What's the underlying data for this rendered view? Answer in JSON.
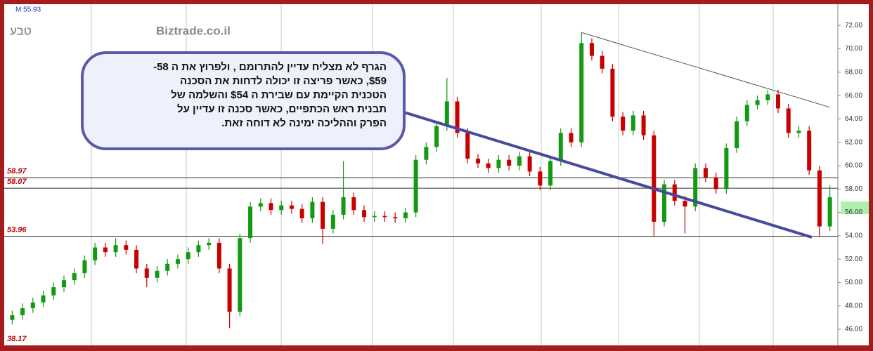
{
  "chart_data": {
    "type": "candlestick",
    "info": "M:55.93",
    "symbol": "טבע",
    "watermark": "Biztrade.co.il",
    "callout": [
      "הגרף לא מצליח עדיין להתרומם , ולפרוץ את ה 58-",
      "$59, כאשר פריצה זו יכולה לדחות את הסכנה",
      "הטכנית הקיימת עם שבירת ה $54 והשלמה של",
      "תבנית ראש הכתפיים, כאשר סכנה זו עדיין על",
      "הפרק וההליכה ימינה לא דוחה זאת."
    ],
    "levels": [
      58.97,
      58.07,
      53.96
    ],
    "low_label": "38.17",
    "up_color": "#129a12",
    "down_color": "#c80000",
    "ylim": [
      44.86,
      73.7
    ],
    "yticks": [
      {
        "value": 46,
        "label": "46.00"
      },
      {
        "value": 48,
        "label": "48.00"
      },
      {
        "value": 50,
        "label": "50.00"
      },
      {
        "value": 52,
        "label": "52.00"
      },
      {
        "value": 54,
        "label": "54.00"
      },
      {
        "value": 56,
        "label": "56.00"
      },
      {
        "value": 58,
        "label": "58.00"
      },
      {
        "value": 60,
        "label": "60.00"
      },
      {
        "value": 62,
        "label": "62.00"
      },
      {
        "value": 64,
        "label": "64.00"
      },
      {
        "value": 66,
        "label": "66.00"
      },
      {
        "value": 68,
        "label": "68.00"
      },
      {
        "value": 70,
        "label": "70.00"
      },
      {
        "value": 72,
        "label": "72.00"
      }
    ],
    "trend_line": {
      "x": [
        55,
        79
      ],
      "y": [
        71.4,
        65.0
      ]
    },
    "open": [
      46.8,
      47.2,
      47.8,
      48.3,
      48.9,
      49.6,
      50.2,
      50.8,
      51.9,
      53.0,
      52.6,
      53.2,
      52.8,
      51.2,
      50.4,
      51.0,
      51.6,
      52.0,
      52.6,
      53.2,
      53.4,
      51.2,
      47.5,
      53.8,
      56.5,
      56.8,
      56.2,
      56.6,
      56.3,
      55.5,
      56.9,
      54.6,
      55.8,
      57.3,
      56.2,
      55.6,
      55.7,
      55.6,
      55.5,
      56.0,
      60.5,
      61.6,
      63.4,
      65.5,
      62.8,
      60.6,
      60.2,
      59.8,
      60.5,
      60.0,
      60.8,
      59.5,
      58.3,
      60.4,
      62.8,
      62.0,
      70.5,
      69.4,
      68.3,
      64.2,
      63.0,
      64.3,
      62.6,
      55.2,
      58.4,
      57.0,
      56.5,
      59.8,
      59.0,
      58.0,
      61.5,
      63.8,
      65.2,
      65.6,
      66.1,
      64.9,
      62.8,
      63.0,
      59.6,
      54.8
    ],
    "high": [
      47.6,
      48.2,
      48.7,
      49.3,
      50.0,
      50.6,
      51.2,
      52.3,
      53.4,
      53.4,
      53.8,
      53.6,
      53.2,
      51.6,
      51.4,
      52.0,
      52.4,
      53.0,
      53.6,
      53.8,
      53.8,
      51.6,
      54.2,
      56.9,
      57.2,
      57.2,
      57.0,
      57.0,
      56.7,
      57.3,
      57.3,
      56.2,
      60.4,
      57.7,
      56.6,
      56.1,
      56.1,
      56.0,
      56.4,
      60.9,
      62.0,
      63.8,
      67.5,
      65.9,
      63.2,
      61.0,
      60.6,
      60.9,
      60.9,
      61.2,
      61.2,
      59.9,
      60.8,
      63.2,
      63.2,
      71.4,
      70.9,
      69.8,
      68.7,
      64.6,
      64.7,
      64.7,
      63.0,
      58.8,
      58.8,
      57.4,
      60.2,
      60.2,
      59.4,
      61.9,
      64.2,
      65.6,
      66.0,
      66.5,
      66.5,
      65.3,
      63.4,
      63.4,
      60.0,
      58.3
    ],
    "low": [
      46.4,
      46.8,
      47.4,
      47.9,
      48.5,
      49.2,
      49.8,
      50.4,
      51.5,
      52.2,
      52.2,
      52.4,
      50.8,
      49.6,
      50.0,
      50.6,
      51.2,
      51.6,
      52.2,
      52.8,
      50.8,
      46.1,
      47.1,
      53.4,
      56.1,
      55.8,
      55.8,
      55.9,
      55.1,
      55.1,
      53.3,
      54.2,
      55.4,
      55.8,
      55.2,
      55.2,
      55.2,
      55.1,
      55.1,
      55.6,
      60.1,
      61.2,
      63.0,
      62.4,
      60.2,
      59.8,
      59.4,
      59.4,
      59.6,
      59.6,
      59.1,
      57.9,
      57.9,
      60.0,
      61.6,
      61.6,
      69.0,
      67.9,
      63.8,
      62.6,
      62.6,
      62.2,
      53.9,
      54.8,
      56.6,
      54.2,
      56.1,
      58.6,
      57.6,
      57.6,
      61.1,
      63.4,
      64.8,
      65.2,
      64.5,
      62.4,
      62.4,
      59.2,
      53.9,
      54.4
    ],
    "close": [
      47.2,
      47.8,
      48.3,
      48.9,
      49.6,
      50.2,
      50.8,
      51.9,
      53.0,
      52.6,
      53.2,
      52.8,
      51.2,
      50.4,
      51.0,
      51.6,
      52.0,
      52.6,
      53.2,
      53.4,
      51.2,
      47.5,
      53.8,
      56.5,
      56.8,
      56.2,
      56.6,
      56.3,
      55.5,
      56.9,
      54.6,
      55.8,
      57.3,
      56.2,
      55.6,
      55.7,
      55.6,
      55.5,
      56.0,
      60.5,
      61.6,
      63.4,
      65.5,
      62.8,
      60.6,
      60.2,
      59.8,
      60.5,
      60.0,
      60.8,
      59.5,
      58.3,
      60.4,
      62.8,
      62.0,
      70.5,
      69.4,
      68.3,
      64.2,
      63.0,
      64.3,
      62.6,
      55.2,
      58.4,
      57.0,
      56.5,
      59.8,
      59.0,
      58.0,
      61.5,
      63.8,
      65.2,
      65.6,
      66.1,
      64.9,
      62.8,
      63.0,
      59.6,
      54.8,
      57.3
    ]
  }
}
